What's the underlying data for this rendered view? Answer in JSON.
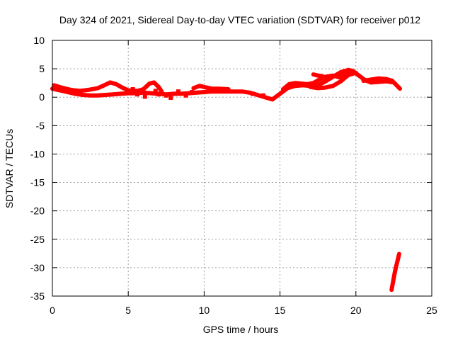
{
  "chart_data": {
    "type": "scatter",
    "title": "Day 324 of 2021, Sidereal Day-to-day VTEC variation (SDTVAR) for receiver p012",
    "xlabel": "GPS time / hours",
    "ylabel": "SDTVAR / TECUs",
    "xlim": [
      0,
      25
    ],
    "ylim": [
      -35,
      10
    ],
    "xticks": [
      "0",
      "5",
      "10",
      "15",
      "20",
      "25"
    ],
    "yticks": [
      "10",
      "5",
      "0",
      "-5",
      "-10",
      "-15",
      "-20",
      "-25",
      "-30",
      "-35"
    ],
    "grid": true,
    "series_color": "#ff0000",
    "series": [
      {
        "name": "main-track",
        "points": [
          [
            0.0,
            1.5
          ],
          [
            0.5,
            1.2
          ],
          [
            1.0,
            0.9
          ],
          [
            1.5,
            0.6
          ],
          [
            2.0,
            0.4
          ],
          [
            2.5,
            0.3
          ],
          [
            3.0,
            0.3
          ],
          [
            3.5,
            0.4
          ],
          [
            4.0,
            0.5
          ],
          [
            4.5,
            0.6
          ],
          [
            5.0,
            0.7
          ],
          [
            5.5,
            0.7
          ],
          [
            6.0,
            0.8
          ],
          [
            6.5,
            0.7
          ],
          [
            7.0,
            0.6
          ],
          [
            7.5,
            0.5
          ],
          [
            8.0,
            0.6
          ],
          [
            8.5,
            0.6
          ],
          [
            9.0,
            0.7
          ],
          [
            9.5,
            0.8
          ],
          [
            10.0,
            0.9
          ],
          [
            10.5,
            1.0
          ],
          [
            11.0,
            1.0
          ],
          [
            11.5,
            1.0
          ],
          [
            12.0,
            1.0
          ],
          [
            12.5,
            1.0
          ],
          [
            13.0,
            0.8
          ],
          [
            13.5,
            0.4
          ],
          [
            14.0,
            0.0
          ],
          [
            14.5,
            -0.4
          ],
          [
            15.0,
            0.6
          ],
          [
            15.5,
            1.6
          ],
          [
            16.0,
            2.0
          ],
          [
            16.5,
            2.1
          ],
          [
            17.0,
            2.0
          ],
          [
            17.5,
            2.1
          ],
          [
            18.0,
            2.8
          ],
          [
            18.5,
            3.6
          ],
          [
            19.0,
            4.4
          ],
          [
            19.5,
            4.8
          ],
          [
            19.8,
            4.6
          ],
          [
            20.2,
            3.8
          ],
          [
            20.6,
            3.0
          ],
          [
            21.0,
            2.6
          ],
          [
            21.5,
            2.7
          ],
          [
            22.0,
            2.8
          ],
          [
            22.5,
            2.6
          ],
          [
            22.9,
            1.5
          ]
        ]
      },
      {
        "name": "upper-track",
        "points": [
          [
            0.1,
            2.1
          ],
          [
            0.6,
            1.7
          ],
          [
            1.2,
            1.3
          ],
          [
            1.8,
            1.1
          ],
          [
            2.4,
            1.3
          ],
          [
            3.0,
            1.6
          ],
          [
            3.5,
            2.2
          ],
          [
            3.8,
            2.6
          ],
          [
            4.2,
            2.3
          ],
          [
            4.6,
            1.7
          ],
          [
            5.0,
            1.2
          ],
          [
            5.6,
            1.1
          ],
          [
            6.0,
            1.4
          ],
          [
            6.4,
            2.4
          ],
          [
            6.7,
            2.6
          ],
          [
            7.0,
            1.8
          ],
          [
            7.2,
            1.0
          ]
        ]
      },
      {
        "name": "secondary-upper",
        "points": [
          [
            9.3,
            1.6
          ],
          [
            9.7,
            2.0
          ],
          [
            10.0,
            1.8
          ],
          [
            10.5,
            1.5
          ],
          [
            11.0,
            1.5
          ],
          [
            11.6,
            1.4
          ]
        ]
      },
      {
        "name": "post-15-upper",
        "points": [
          [
            15.2,
            1.4
          ],
          [
            15.6,
            2.3
          ],
          [
            16.0,
            2.5
          ],
          [
            16.4,
            2.4
          ],
          [
            16.8,
            2.3
          ],
          [
            17.2,
            2.5
          ],
          [
            17.6,
            3.1
          ],
          [
            18.0,
            3.6
          ],
          [
            18.5,
            3.8
          ],
          [
            18.9,
            3.5
          ],
          [
            19.3,
            4.0
          ],
          [
            19.6,
            4.4
          ]
        ]
      },
      {
        "name": "post-15-lower",
        "points": [
          [
            17.0,
            1.8
          ],
          [
            17.5,
            1.6
          ],
          [
            18.0,
            1.7
          ],
          [
            18.5,
            2.0
          ],
          [
            19.0,
            2.8
          ],
          [
            19.5,
            3.9
          ],
          [
            20.0,
            4.3
          ]
        ]
      },
      {
        "name": "post-15-top",
        "points": [
          [
            17.2,
            4.0
          ],
          [
            17.5,
            3.8
          ],
          [
            17.8,
            3.7
          ]
        ]
      },
      {
        "name": "tail-end",
        "points": [
          [
            20.5,
            2.9
          ],
          [
            21.0,
            3.1
          ],
          [
            21.5,
            3.3
          ],
          [
            22.0,
            3.2
          ],
          [
            22.4,
            2.9
          ]
        ]
      },
      {
        "name": "outlier-segment",
        "points": [
          [
            22.35,
            -33.9
          ],
          [
            22.45,
            -32.5
          ],
          [
            22.55,
            -31.0
          ],
          [
            22.65,
            -29.8
          ],
          [
            22.75,
            -28.7
          ],
          [
            22.85,
            -27.6
          ]
        ]
      }
    ],
    "scattered_points": [
      [
        5.3,
        1.4
      ],
      [
        5.6,
        0.5
      ],
      [
        6.1,
        0.1
      ],
      [
        7.5,
        0.3
      ],
      [
        7.8,
        -0.1
      ],
      [
        8.3,
        1.0
      ],
      [
        8.8,
        0.3
      ],
      [
        9.2,
        0.9
      ],
      [
        6.8,
        1.1
      ],
      [
        7.0,
        0.5
      ],
      [
        13.2,
        0.6
      ],
      [
        13.9,
        0.3
      ]
    ]
  }
}
